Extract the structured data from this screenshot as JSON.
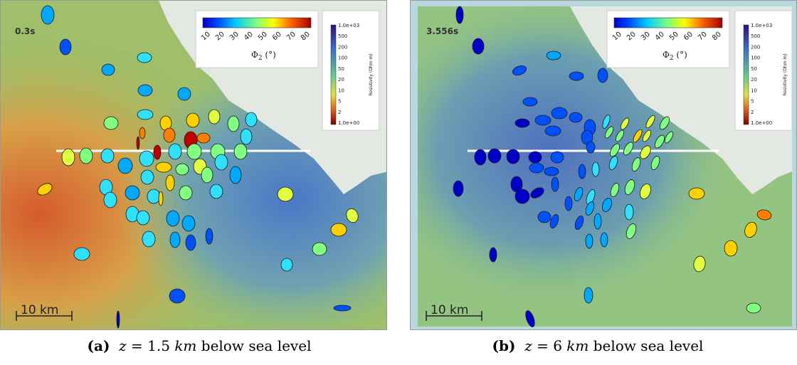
{
  "figure": {
    "panels": [
      {
        "id": "a",
        "time_label": "0.3s",
        "scale_label": "10 km",
        "phase_colorbar": {
          "ticks": [
            "10",
            "20",
            "30",
            "40",
            "50",
            "60",
            "70",
            "80"
          ],
          "title_main": "Φ",
          "title_sub": "2",
          "title_unit": " (°)"
        },
        "resistivity_colorbar": {
          "ticks": [
            "1.0e+03",
            "500",
            "200",
            "100",
            "50",
            "20",
            "10",
            "5",
            "2",
            "1.0e+00"
          ],
          "title": "Resistivity (Ohm m)"
        },
        "caption": {
          "label": "(a)",
          "depth_var": "z",
          "depth_eq": " = 1.5 ",
          "depth_unit": "km",
          "depth_rest": " below sea level"
        }
      },
      {
        "id": "b",
        "time_label": "3.556s",
        "scale_label": "10 km",
        "phase_colorbar": {
          "ticks": [
            "10",
            "20",
            "30",
            "40",
            "50",
            "60",
            "70",
            "80"
          ],
          "title_main": "Φ",
          "title_sub": "2",
          "title_unit": " (°)"
        },
        "resistivity_colorbar": {
          "ticks": [
            "1.0e+03",
            "500",
            "200",
            "100",
            "50",
            "20",
            "10",
            "5",
            "2",
            "1.0e+00"
          ],
          "title": "Resistivity (Ohm m)"
        },
        "caption": {
          "label": "(b)",
          "depth_var": "z",
          "depth_eq": " = 6 ",
          "depth_unit": "km",
          "depth_rest": " below sea level"
        }
      }
    ],
    "colors": {
      "phase_low": "#0000c8",
      "phase_mid": "#80ff80",
      "phase_high": "#c00000",
      "profile_line": "#ffffff"
    }
  }
}
